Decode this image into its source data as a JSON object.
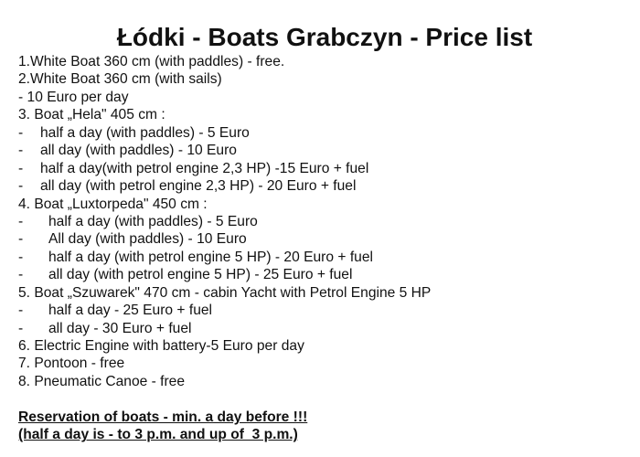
{
  "title": "Łódki - Boats Grabczyn - Price list",
  "lines": [
    {
      "type": "main",
      "text": "1.White Boat 360 cm (with paddles) - free."
    },
    {
      "type": "main",
      "text": "2.White Boat 360 cm (with sails)"
    },
    {
      "type": "main",
      "text": "- 10 Euro per day"
    },
    {
      "type": "main",
      "text": "3. Boat „Hela\" 405 cm :"
    },
    {
      "type": "sub1",
      "dash": "-",
      "text": "half a day (with paddles) - 5 Euro"
    },
    {
      "type": "sub1",
      "dash": "-",
      "text": "all day (with paddles) - 10 Euro"
    },
    {
      "type": "sub1",
      "dash": "-",
      "text": "half a day(with petrol engine 2,3 HP) -15 Euro + fuel"
    },
    {
      "type": "sub1",
      "dash": "-",
      "text": "all day (with petrol engine 2,3 HP) - 20 Euro + fuel"
    },
    {
      "type": "main",
      "text": "4. Boat „Luxtorpeda\" 450 cm :"
    },
    {
      "type": "sub2",
      "dash": "-",
      "text": "half a day (with paddles) - 5 Euro"
    },
    {
      "type": "sub2",
      "dash": "-",
      "text": "All day (with paddles) - 10 Euro"
    },
    {
      "type": "sub2",
      "dash": "-",
      "text": "half a day (with petrol engine 5 HP) - 20 Euro + fuel"
    },
    {
      "type": "sub2",
      "dash": "-",
      "text": "all day (with petrol engine 5 HP) - 25 Euro + fuel"
    },
    {
      "type": "main",
      "text": "5. Boat „Szuwarek\" 470 cm - cabin Yacht with Petrol Engine 5 HP"
    },
    {
      "type": "sub2",
      "dash": "-",
      "text": "half a day - 25 Euro + fuel"
    },
    {
      "type": "sub2",
      "dash": "-",
      "text": "all day - 30 Euro + fuel"
    },
    {
      "type": "main",
      "text": "6. Electric Engine with battery-5 Euro per day"
    },
    {
      "type": "main",
      "text": "7. Pontoon - free"
    },
    {
      "type": "main",
      "text": "8. Pneumatic Canoe - free"
    }
  ],
  "notes": [
    "Reservation of boats - min. a day before !!!",
    "(half a day is - to 3 p.m. and up of  3 p.m.)"
  ]
}
